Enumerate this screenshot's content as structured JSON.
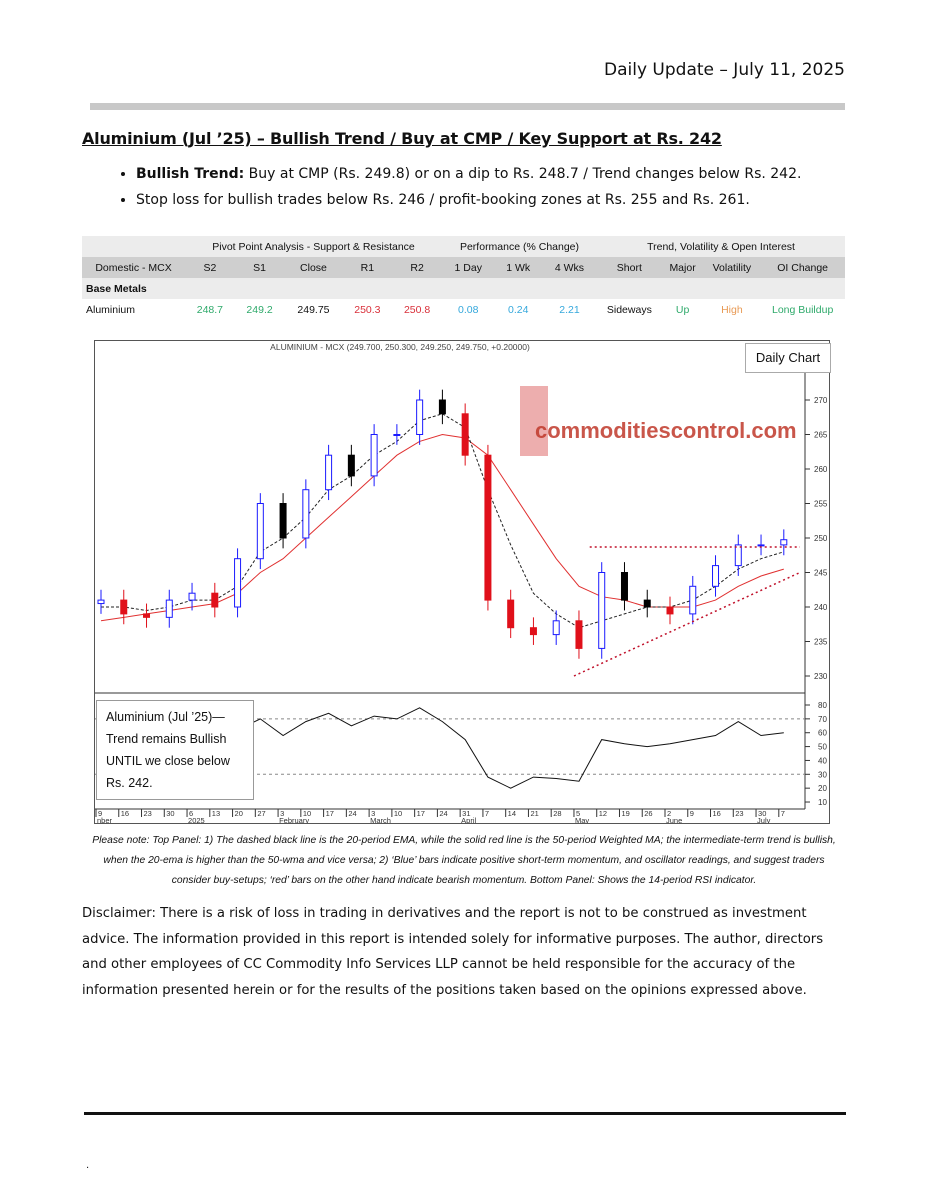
{
  "header": {
    "date_line": "Daily Update – July 11, 2025"
  },
  "title": "Aluminium (Jul ’25) – Bullish Trend / Buy at CMP / Key Support at Rs. 242",
  "bullets": [
    {
      "bold": "Bullish Trend:",
      "text": " Buy at CMP (Rs. 249.8) or on a dip to Rs. 248.7 / Trend changes below Rs. 242."
    },
    {
      "bold": "",
      "text": "Stop loss for bullish trades below Rs. 246 / profit-booking zones at Rs. 255 and Rs. 261."
    }
  ],
  "table": {
    "groups": [
      "Pivot Point Analysis - Support & Resistance",
      "Performance (% Change)",
      "Trend, Volatility & Open Interest"
    ],
    "headers": [
      "Domestic - MCX",
      "S2",
      "S1",
      "Close",
      "R1",
      "R2",
      "1 Day",
      "1 Wk",
      "4 Wks",
      "Short",
      "Major",
      "Volatility",
      "OI Change"
    ],
    "section": "Base Metals",
    "row": [
      "Aluminium",
      "248.7",
      "249.2",
      "249.75",
      "250.3",
      "250.8",
      "0.08",
      "0.24",
      "2.21",
      "Sideways",
      "Up",
      "High",
      "Long Buildup"
    ]
  },
  "colors": {
    "support": "#2faa6b",
    "resistance": "#d9303a",
    "performance": "#35a8dc",
    "volatility": "#e89a55",
    "bull_bar": "#1a1aff",
    "bear_bar": "#e0101a",
    "ema": "#222222",
    "wma": "#e03030"
  },
  "chart": {
    "header": "ALUMINIUM - MCX (249.700, 250.300, 249.250, 249.750, +0.20000)",
    "badge": "Daily Chart",
    "logo_text": "commoditiescontrol.com",
    "textbox": [
      "Aluminium (Jul ’25)—",
      "Trend remains Bullish",
      "UNTIL we close below",
      "Rs. 242."
    ]
  },
  "chart_data": {
    "type": "candlestick",
    "x": [
      "Dec 9",
      "Dec 16",
      "Dec 23",
      "Dec 30",
      "Jan 6",
      "Jan 13",
      "Jan 20",
      "Jan 27",
      "Feb 3",
      "Feb 10",
      "Feb 17",
      "Feb 24",
      "Mar 3",
      "Mar 10",
      "Mar 17",
      "Mar 24",
      "Mar 31",
      "Apr 7",
      "Apr 14",
      "Apr 21",
      "Apr 28",
      "May 5",
      "May 12",
      "May 19",
      "May 26",
      "Jun 2",
      "Jun 9",
      "Jun 16",
      "Jun 23",
      "Jun 30",
      "Jul 7"
    ],
    "close": [
      241,
      239,
      238.5,
      241,
      242,
      240,
      247,
      255,
      250,
      257,
      262,
      259,
      265,
      265,
      270,
      268,
      262,
      241,
      237,
      236,
      238,
      234,
      245,
      241,
      240,
      239,
      243,
      246,
      249,
      249,
      249.75
    ],
    "ema20": [
      240,
      240,
      239.5,
      240,
      241,
      241,
      243,
      248,
      250,
      253,
      257,
      259,
      262,
      264,
      267,
      268,
      266,
      257,
      249,
      242,
      239,
      237,
      238,
      239,
      240,
      240,
      241,
      243,
      245.5,
      247,
      248
    ],
    "wma50": [
      238,
      238.5,
      239,
      239.5,
      240,
      240.5,
      242,
      245,
      247,
      250,
      253,
      256,
      259,
      262,
      264,
      265,
      264.5,
      262,
      257,
      252,
      247,
      243,
      241.5,
      241,
      240,
      240,
      240,
      241,
      243,
      244.5,
      245.5
    ],
    "rsi": [
      45,
      42,
      38,
      50,
      52,
      45,
      62,
      70,
      58,
      68,
      74,
      65,
      72,
      70,
      78,
      68,
      55,
      28,
      20,
      28,
      27,
      25,
      55,
      52,
      50,
      52,
      55,
      58,
      68,
      58,
      60
    ],
    "price_ticks": [
      230,
      235,
      240,
      245,
      250,
      255,
      260,
      265,
      270
    ],
    "rsi_ticks": [
      10,
      20,
      30,
      40,
      50,
      60,
      70,
      80
    ],
    "rsi_levels": [
      30,
      70
    ],
    "date_ticks": [
      "9",
      "16",
      "23",
      "30",
      "6",
      "13",
      "20",
      "27",
      "3",
      "10",
      "17",
      "24",
      "3",
      "10",
      "17",
      "24",
      "31",
      "7",
      "14",
      "21",
      "28",
      "5",
      "12",
      "19",
      "26",
      "2",
      "9",
      "16",
      "23",
      "30",
      "7"
    ],
    "month_labels": [
      "nber",
      "2025",
      "February",
      "March",
      "April",
      "May",
      "June",
      "July"
    ],
    "resistance_line": 248.7,
    "support_line": {
      "from": [
        "May 5",
        230
      ],
      "to": [
        "Jul 11",
        245
      ]
    }
  },
  "note": "Please note: Top Panel: 1) The dashed black line is the 20-period EMA, while the solid red line is the 50-period Weighted MA; the intermediate-term trend is bullish, when the 20-ema is higher than the 50-wma and vice versa; 2)  ‘Blue’  bars indicate positive short-term momentum, and oscillator readings, and suggest traders consider buy-setups;  ‘red’  bars on the other hand indicate bearish momentum. Bottom Panel: Shows the 14-period RSI indicator.",
  "disclaimer": "Disclaimer: There is a risk of loss in trading in derivatives and the report is not to be construed as investment advice. The information provided in this report is intended solely for informative purposes. The author, directors and other employees of CC Commodity Info Services LLP cannot be held responsible for the accuracy of the information presented herein or for the results of the positions taken based on the opinions expressed above.",
  "footer_dot": "."
}
